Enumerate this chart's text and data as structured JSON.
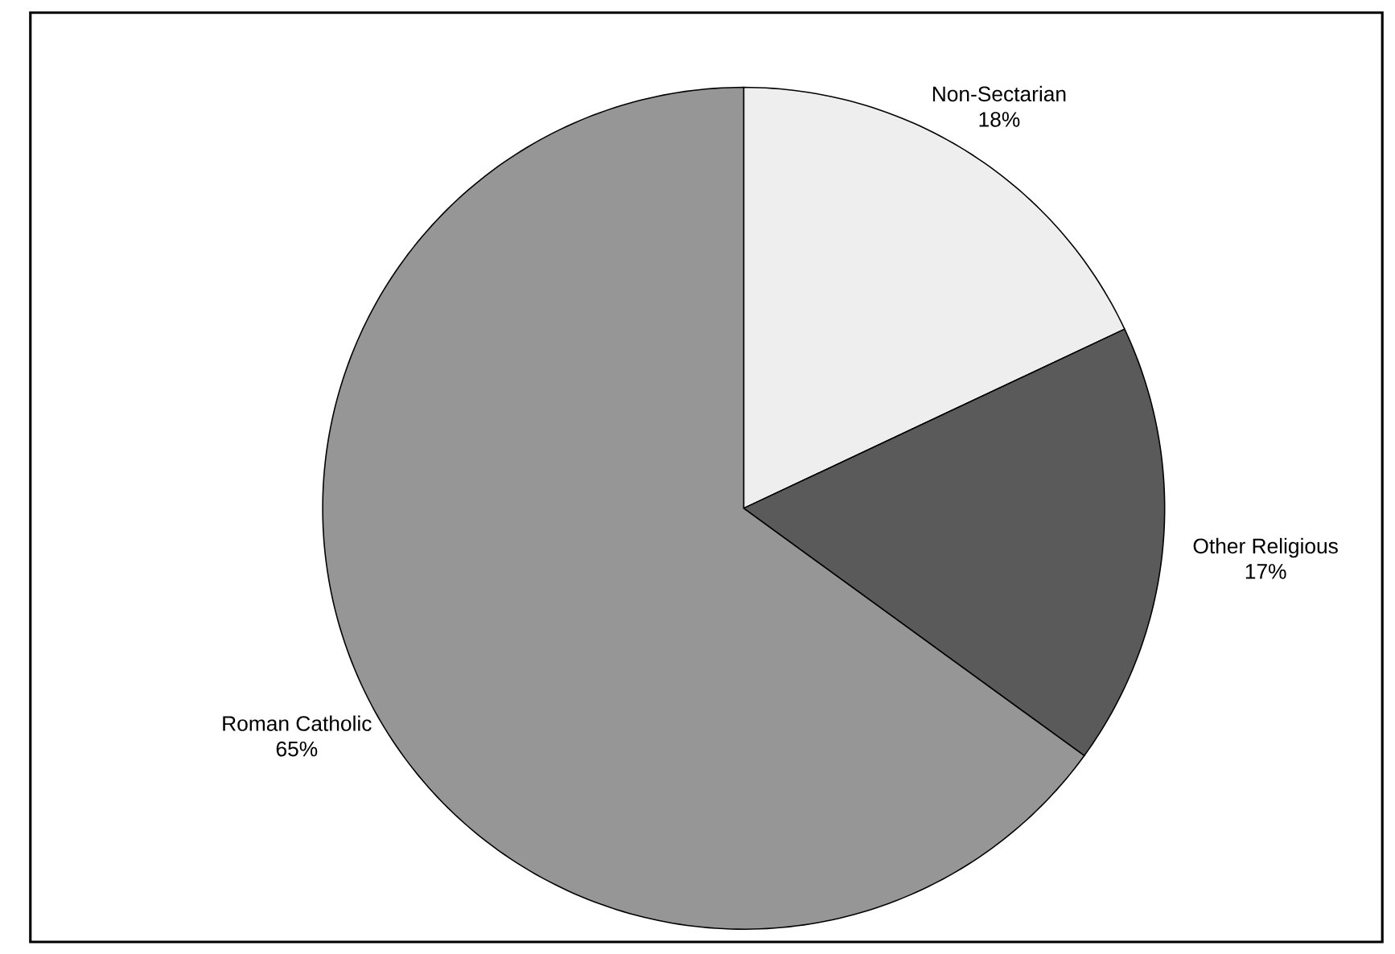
{
  "chart_data": {
    "type": "pie",
    "categories": [
      "Non-Sectarian",
      "Other Religious",
      "Roman Catholic"
    ],
    "values": [
      18,
      17,
      65
    ],
    "value_labels": [
      "18%",
      "17%",
      "65%"
    ],
    "colors": [
      "#eeeeee",
      "#5a5a5a",
      "#969696"
    ]
  }
}
